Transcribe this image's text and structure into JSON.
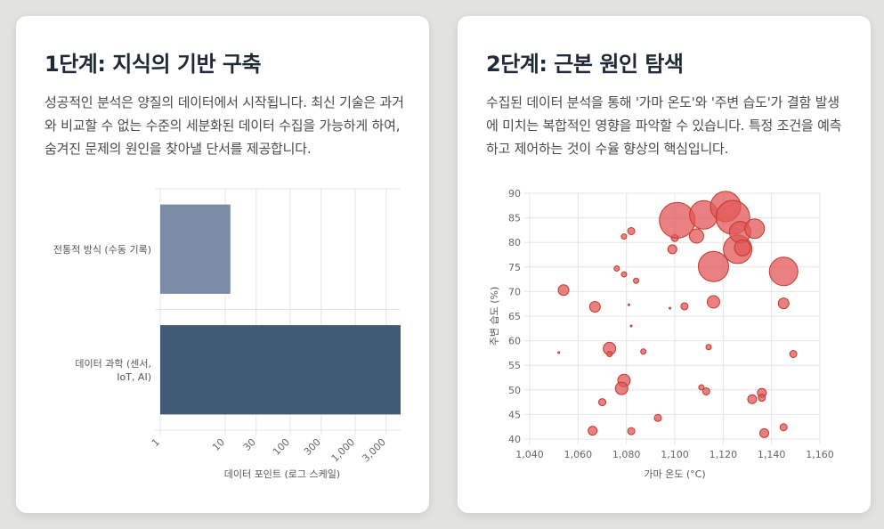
{
  "cards": [
    {
      "title": "1단계: 지식의 기반 구축",
      "body": "성공적인 분석은 양질의 데이터에서 시작됩니다. 최신 기술은 과거와 비교할 수 없는 수준의 세분화된 데이터 수집을 가능하게 하여, 숨겨진 문제의 원인을 찾아낼 단서를 제공합니다."
    },
    {
      "title": "2단계: 근본 원인 탐색",
      "body": "수집된 데이터 분석을 통해 '가마 온도'와 '주변 습도'가 결함 발생에 미치는 복합적인 영향을 파악할 수 있습니다. 특정 조건을 예측하고 제어하는 것이 수율 향상의 핵심입니다."
    }
  ],
  "chart_data": [
    {
      "type": "bar",
      "orientation": "horizontal",
      "categories": [
        "전통적 방식 (수동 기록)",
        "데이터 과학 (센서, IoT, AI)"
      ],
      "values": [
        12,
        5000
      ],
      "colors": [
        "#7a8ba5",
        "#415a75"
      ],
      "xscale": "log",
      "xlim": [
        1,
        5000
      ],
      "xticks": [
        1,
        10,
        30,
        100,
        300,
        1000,
        3000
      ],
      "xtick_labels": [
        "1",
        "10",
        "30",
        "100",
        "300",
        "1,000",
        "3,000"
      ],
      "xlabel": "데이터 포인트 (로그 스케일)",
      "grid": true
    },
    {
      "type": "scatter",
      "variant": "bubble",
      "xlabel": "가마 온도 (°C)",
      "ylabel": "주변 습도 (%)",
      "xlim": [
        1040,
        1160
      ],
      "ylim": [
        40,
        90
      ],
      "xticks": [
        1040,
        1060,
        1080,
        1100,
        1120,
        1140,
        1160
      ],
      "xtick_labels": [
        "1,040",
        "1,060",
        "1,080",
        "1,100",
        "1,120",
        "1,140",
        "1,160"
      ],
      "yticks": [
        40,
        45,
        50,
        55,
        60,
        65,
        70,
        75,
        80,
        85,
        90
      ],
      "color": "#e15759",
      "grid": true,
      "points": [
        {
          "x": 1054,
          "y": 70.3,
          "r": 6
        },
        {
          "x": 1067,
          "y": 66.9,
          "r": 6
        },
        {
          "x": 1052,
          "y": 57.6,
          "r": 1
        },
        {
          "x": 1066,
          "y": 41.7,
          "r": 5
        },
        {
          "x": 1070,
          "y": 47.5,
          "r": 4
        },
        {
          "x": 1073,
          "y": 58.4,
          "r": 7
        },
        {
          "x": 1073,
          "y": 57.3,
          "r": 3
        },
        {
          "x": 1076,
          "y": 74.7,
          "r": 3
        },
        {
          "x": 1079,
          "y": 73.5,
          "r": 3
        },
        {
          "x": 1079,
          "y": 81.2,
          "r": 3
        },
        {
          "x": 1081,
          "y": 67.3,
          "r": 1
        },
        {
          "x": 1082,
          "y": 63.0,
          "r": 1
        },
        {
          "x": 1082,
          "y": 82.3,
          "r": 4
        },
        {
          "x": 1084,
          "y": 72.2,
          "r": 3
        },
        {
          "x": 1087,
          "y": 57.8,
          "r": 3
        },
        {
          "x": 1079,
          "y": 51.9,
          "r": 7
        },
        {
          "x": 1078,
          "y": 50.3,
          "r": 7
        },
        {
          "x": 1082,
          "y": 41.6,
          "r": 4
        },
        {
          "x": 1093,
          "y": 44.3,
          "r": 4
        },
        {
          "x": 1098,
          "y": 66.6,
          "r": 1
        },
        {
          "x": 1099,
          "y": 78.6,
          "r": 5
        },
        {
          "x": 1100,
          "y": 80.9,
          "r": 4
        },
        {
          "x": 1101,
          "y": 84.5,
          "r": 20
        },
        {
          "x": 1104,
          "y": 67.0,
          "r": 4
        },
        {
          "x": 1109,
          "y": 81.3,
          "r": 8
        },
        {
          "x": 1111,
          "y": 50.5,
          "r": 3
        },
        {
          "x": 1112,
          "y": 85.6,
          "r": 16
        },
        {
          "x": 1113,
          "y": 49.7,
          "r": 4
        },
        {
          "x": 1114,
          "y": 58.7,
          "r": 3
        },
        {
          "x": 1116,
          "y": 67.9,
          "r": 7
        },
        {
          "x": 1116,
          "y": 75.1,
          "r": 17
        },
        {
          "x": 1121,
          "y": 87.3,
          "r": 17
        },
        {
          "x": 1124,
          "y": 85.1,
          "r": 19
        },
        {
          "x": 1126,
          "y": 78.6,
          "r": 16
        },
        {
          "x": 1127,
          "y": 82.1,
          "r": 12
        },
        {
          "x": 1128,
          "y": 78.9,
          "r": 9
        },
        {
          "x": 1133,
          "y": 82.8,
          "r": 11
        },
        {
          "x": 1132,
          "y": 48.1,
          "r": 5
        },
        {
          "x": 1136,
          "y": 49.4,
          "r": 5
        },
        {
          "x": 1136,
          "y": 48.4,
          "r": 4
        },
        {
          "x": 1137,
          "y": 41.2,
          "r": 5
        },
        {
          "x": 1145,
          "y": 74.1,
          "r": 16
        },
        {
          "x": 1145,
          "y": 67.6,
          "r": 6
        },
        {
          "x": 1145,
          "y": 42.4,
          "r": 4
        },
        {
          "x": 1149,
          "y": 57.3,
          "r": 4
        }
      ]
    }
  ]
}
